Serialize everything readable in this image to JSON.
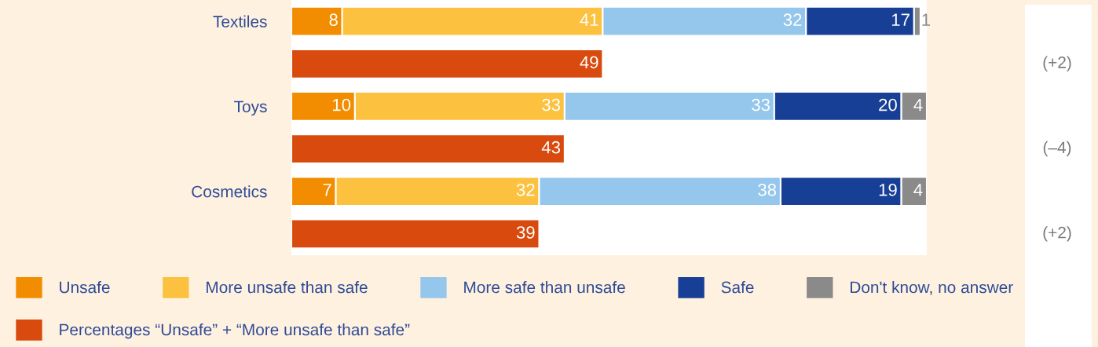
{
  "chart_data": {
    "type": "bar",
    "orientation": "horizontal",
    "stacked": true,
    "categories": [
      "Textiles",
      null,
      "Toys",
      null,
      "Cosmetics",
      null
    ],
    "series": [
      {
        "name": "Unsafe",
        "color": "#f28c00",
        "values": [
          8,
          null,
          10,
          null,
          7,
          null
        ]
      },
      {
        "name": "More unsafe than safe",
        "color": "#fcc23f",
        "values": [
          41,
          null,
          33,
          null,
          32,
          null
        ]
      },
      {
        "name": "More safe than unsafe",
        "color": "#95c6ec",
        "values": [
          32,
          null,
          33,
          null,
          38,
          null
        ]
      },
      {
        "name": "Safe",
        "color": "#173f95",
        "values": [
          17,
          null,
          20,
          null,
          19,
          null
        ]
      },
      {
        "name": "Don't know, no answer",
        "color": "#8a8a8a",
        "values": [
          1,
          null,
          4,
          null,
          4,
          null
        ]
      },
      {
        "name": "Percentages “Unsafe” + “More unsafe than safe”",
        "color": "#d94a0e",
        "values": [
          null,
          49,
          null,
          43,
          null,
          39
        ]
      }
    ],
    "xlim": [
      0,
      100
    ],
    "tick_labels": "y",
    "data_labels": true,
    "grid": false,
    "legend": "bottom left",
    "annotations": [
      "(+2)",
      "(–4)",
      "(+2)"
    ]
  }
}
